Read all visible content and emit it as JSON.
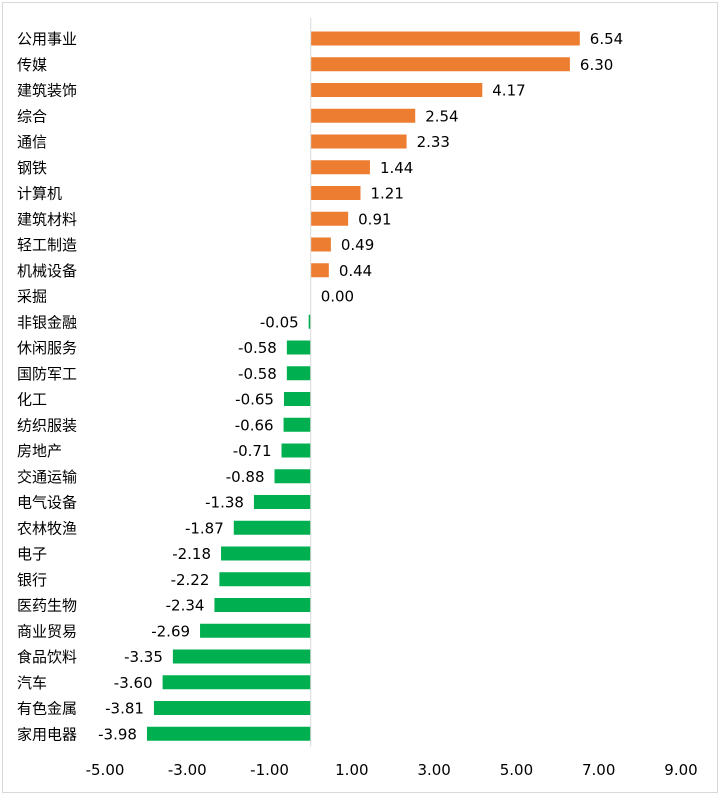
{
  "chart_data": {
    "type": "bar",
    "orientation": "horizontal",
    "title": "",
    "xlabel": "",
    "ylabel": "",
    "categories": [
      "公用事业",
      "传媒",
      "建筑装饰",
      "综合",
      "通信",
      "钢铁",
      "计算机",
      "建筑材料",
      "轻工制造",
      "机械设备",
      "采掘",
      "非银金融",
      "休闲服务",
      "国防军工",
      "化工",
      "纺织服装",
      "房地产",
      "交通运输",
      "电气设备",
      "农林牧渔",
      "电子",
      "银行",
      "医药生物",
      "商业贸易",
      "食品饮料",
      "汽车",
      "有色金属",
      "家用电器"
    ],
    "values": [
      6.54,
      6.3,
      4.17,
      2.54,
      2.33,
      1.44,
      1.21,
      0.91,
      0.49,
      0.44,
      0.0,
      -0.05,
      -0.58,
      -0.58,
      -0.65,
      -0.66,
      -0.71,
      -0.88,
      -1.38,
      -1.87,
      -2.18,
      -2.22,
      -2.34,
      -2.69,
      -3.35,
      -3.6,
      -3.81,
      -3.98
    ],
    "data_labels": [
      "6.54",
      "6.30",
      "4.17",
      "2.54",
      "2.33",
      "1.44",
      "1.21",
      "0.91",
      "0.49",
      "0.44",
      "0.00",
      "-0.05",
      "-0.58",
      "-0.58",
      "-0.65",
      "-0.66",
      "-0.71",
      "-0.88",
      "-1.38",
      "-1.87",
      "-2.18",
      "-2.22",
      "-2.34",
      "-2.69",
      "-3.35",
      "-3.60",
      "-3.81",
      "-3.98"
    ],
    "xlim": [
      -5,
      9
    ],
    "x_ticks": [
      -5,
      -3,
      -1,
      1,
      3,
      5,
      7,
      9
    ],
    "x_tick_labels": [
      "-5.00",
      "-3.00",
      "-1.00",
      "1.00",
      "3.00",
      "5.00",
      "7.00",
      "9.00"
    ],
    "grid": false,
    "legend": "none",
    "colors": {
      "positive": "#ED7D31",
      "negative": "#00B050",
      "axis": "#d9d9d9"
    }
  }
}
